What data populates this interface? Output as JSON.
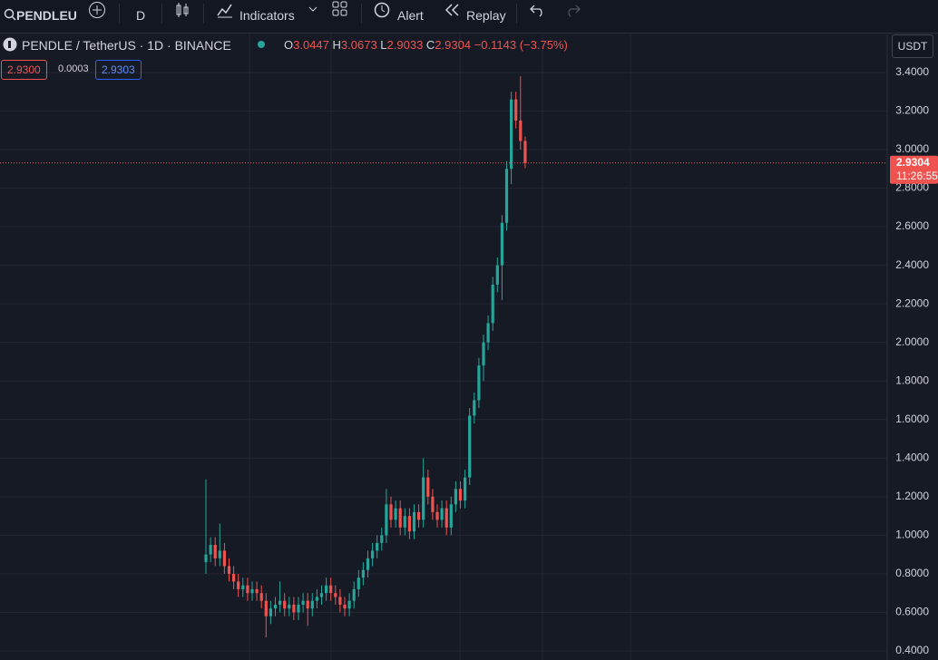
{
  "toolbar": {
    "symbol": "PENDLEU",
    "interval": "D",
    "indicators": "Indicators",
    "alert": "Alert",
    "replay": "Replay"
  },
  "legend": {
    "title": "PENDLE / TetherUS · 1D · BINANCE",
    "o_label": "O",
    "o": "3.0447",
    "h_label": "H",
    "h": "3.0673",
    "l_label": "L",
    "l": "2.9033",
    "c_label": "C",
    "c": "2.9304",
    "change": "−0.1143 (−3.75%)",
    "bid": "2.9300",
    "spread": "0.0003",
    "ask": "2.9303"
  },
  "chart_data": {
    "type": "candlestick",
    "currency": "USDT",
    "ylim": [
      0.353,
      3.597
    ],
    "yticks": [
      {
        "value": 0.4,
        "label": "0.4000"
      },
      {
        "value": 0.6,
        "label": "0.6000"
      },
      {
        "value": 0.8,
        "label": "0.8000"
      },
      {
        "value": 1.0,
        "label": "1.0000"
      },
      {
        "value": 1.2,
        "label": "1.2000"
      },
      {
        "value": 1.4,
        "label": "1.4000"
      },
      {
        "value": 1.6,
        "label": "1.6000"
      },
      {
        "value": 1.8,
        "label": "1.8000"
      },
      {
        "value": 2.0,
        "label": "2.0000"
      },
      {
        "value": 2.2,
        "label": "2.2000"
      },
      {
        "value": 2.4,
        "label": "2.4000"
      },
      {
        "value": 2.6,
        "label": "2.6000"
      },
      {
        "value": 2.8,
        "label": "2.8000"
      },
      {
        "value": 3.0,
        "label": "3.0000"
      },
      {
        "value": 3.2,
        "label": "3.2000"
      },
      {
        "value": 3.4,
        "label": "3.4000"
      }
    ],
    "grid": true,
    "up_color": "#26a69a",
    "down_color": "#ef5350",
    "last_price": {
      "value": 2.9304,
      "label": "2.9304"
    },
    "countdown": "11:26:55",
    "open": [
      0.86,
      0.9,
      0.95,
      0.88,
      0.92,
      0.84,
      0.8,
      0.76,
      0.72,
      0.74,
      0.7,
      0.72,
      0.7,
      0.66,
      0.58,
      0.62,
      0.64,
      0.66,
      0.62,
      0.64,
      0.6,
      0.64,
      0.66,
      0.62,
      0.66,
      0.68,
      0.7,
      0.74,
      0.7,
      0.68,
      0.64,
      0.62,
      0.66,
      0.72,
      0.78,
      0.82,
      0.88,
      0.92,
      0.96,
      1.0,
      1.16,
      1.08,
      1.14,
      1.04,
      1.1,
      1.02,
      1.12,
      1.08,
      1.3,
      1.2,
      1.12,
      1.08,
      1.14,
      1.04,
      1.16,
      1.24,
      1.18,
      1.3,
      1.62,
      1.7,
      1.88,
      2.0,
      2.1,
      2.3,
      2.4,
      2.62,
      2.9,
      3.26,
      3.15,
      3.0447
    ],
    "high": [
      1.29,
      0.99,
      0.99,
      1.06,
      0.96,
      0.88,
      0.84,
      0.8,
      0.78,
      0.78,
      0.76,
      0.76,
      0.74,
      0.7,
      0.66,
      0.68,
      0.76,
      0.7,
      0.68,
      0.68,
      0.68,
      0.7,
      0.7,
      0.7,
      0.72,
      0.74,
      0.78,
      0.78,
      0.74,
      0.72,
      0.68,
      0.7,
      0.76,
      0.82,
      0.86,
      0.92,
      0.96,
      1.0,
      1.04,
      1.24,
      1.2,
      1.18,
      1.18,
      1.14,
      1.14,
      1.16,
      1.16,
      1.4,
      1.34,
      1.24,
      1.16,
      1.18,
      1.18,
      1.2,
      1.28,
      1.28,
      1.34,
      1.66,
      1.74,
      1.92,
      2.04,
      2.14,
      2.34,
      2.44,
      2.66,
      2.94,
      3.3,
      3.3,
      3.38,
      3.0673
    ],
    "low": [
      0.8,
      0.86,
      0.84,
      0.84,
      0.8,
      0.76,
      0.72,
      0.68,
      0.68,
      0.66,
      0.66,
      0.66,
      0.62,
      0.47,
      0.54,
      0.58,
      0.6,
      0.58,
      0.58,
      0.56,
      0.56,
      0.6,
      0.53,
      0.58,
      0.62,
      0.64,
      0.66,
      0.66,
      0.64,
      0.6,
      0.58,
      0.58,
      0.62,
      0.68,
      0.74,
      0.78,
      0.84,
      0.88,
      0.92,
      0.96,
      1.04,
      1.04,
      1.0,
      1.0,
      0.98,
      0.98,
      1.04,
      1.04,
      1.16,
      1.08,
      1.04,
      1.04,
      1.0,
      1.0,
      1.12,
      1.14,
      1.14,
      1.26,
      1.58,
      1.66,
      1.8,
      1.96,
      2.06,
      2.26,
      2.22,
      2.58,
      2.82,
      3.11,
      3.0,
      2.9033
    ],
    "close": [
      0.9,
      0.95,
      0.88,
      0.92,
      0.84,
      0.8,
      0.76,
      0.72,
      0.74,
      0.7,
      0.72,
      0.7,
      0.66,
      0.58,
      0.62,
      0.64,
      0.66,
      0.62,
      0.64,
      0.6,
      0.64,
      0.66,
      0.62,
      0.66,
      0.68,
      0.7,
      0.74,
      0.7,
      0.68,
      0.64,
      0.62,
      0.66,
      0.72,
      0.78,
      0.82,
      0.88,
      0.92,
      0.96,
      1.0,
      1.16,
      1.08,
      1.14,
      1.04,
      1.1,
      1.02,
      1.12,
      1.08,
      1.3,
      1.2,
      1.12,
      1.08,
      1.14,
      1.04,
      1.16,
      1.24,
      1.18,
      1.3,
      1.62,
      1.7,
      1.88,
      2.0,
      2.1,
      2.3,
      2.4,
      2.62,
      2.9,
      3.26,
      3.15,
      3.0447,
      2.9304
    ]
  }
}
